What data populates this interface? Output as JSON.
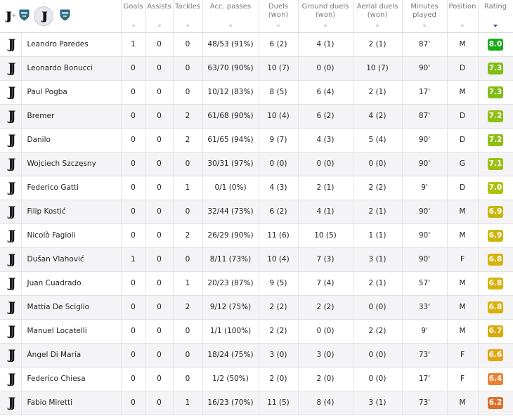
{
  "header": {
    "goals": "Goals",
    "assists": "Assists",
    "tackles": "Tackles",
    "acc_passes": "Acc. passes",
    "duels": [
      "Duels",
      "(won)"
    ],
    "ground_duels": [
      "Ground duels",
      "(won)"
    ],
    "aerial_duels": [
      "Aerial duels",
      "(won)"
    ],
    "minutes": [
      "Minutes",
      "played"
    ],
    "position": "Position",
    "rating": "Rating",
    "filters": {
      "plus": "+"
    },
    "sort_active": "rating"
  },
  "colors": {
    "rating_green_dark": "#1bab1b",
    "rating_green": "#7fbd16",
    "rating_yellow_green": "#acc112",
    "rating_yellow": "#d8b10b",
    "rating_orange": "#ea8231",
    "rating_deep_orange": "#e06c28",
    "sort_active": "#3553b5"
  },
  "icons": {
    "team_crest": "juventus-crest-icon",
    "opponent_crest": "lecce-crest-icon"
  },
  "players": [
    {
      "name": "Leandro Paredes",
      "goals": "1",
      "assists": "0",
      "tackles": "0",
      "passes": "48/53 (91%)",
      "duels": "6 (2)",
      "ground": "4 (1)",
      "aerial": "2 (1)",
      "minutes": "87'",
      "pos": "M",
      "rating": "8.0",
      "color": "#1bab1b"
    },
    {
      "name": "Leonardo Bonucci",
      "goals": "0",
      "assists": "0",
      "tackles": "0",
      "passes": "63/70 (90%)",
      "duels": "10 (7)",
      "ground": "0 (0)",
      "aerial": "10 (7)",
      "minutes": "90'",
      "pos": "D",
      "rating": "7.3",
      "color": "#7fbd16"
    },
    {
      "name": "Paul Pogba",
      "goals": "0",
      "assists": "0",
      "tackles": "0",
      "passes": "10/12 (83%)",
      "duels": "8 (5)",
      "ground": "6 (4)",
      "aerial": "2 (1)",
      "minutes": "17'",
      "pos": "M",
      "rating": "7.3",
      "color": "#7fbd16"
    },
    {
      "name": "Bremer",
      "goals": "0",
      "assists": "0",
      "tackles": "2",
      "passes": "61/68 (90%)",
      "duels": "10 (4)",
      "ground": "6 (2)",
      "aerial": "4 (2)",
      "minutes": "87'",
      "pos": "D",
      "rating": "7.2",
      "color": "#8fbe14"
    },
    {
      "name": "Danilo",
      "goals": "0",
      "assists": "0",
      "tackles": "2",
      "passes": "61/65 (94%)",
      "duels": "9 (7)",
      "ground": "4 (3)",
      "aerial": "5 (4)",
      "minutes": "90'",
      "pos": "D",
      "rating": "7.2",
      "color": "#8fbe14"
    },
    {
      "name": "Wojciech Szczęsny",
      "goals": "0",
      "assists": "0",
      "tackles": "0",
      "passes": "30/31 (97%)",
      "duels": "0 (0)",
      "ground": "0 (0)",
      "aerial": "0 (0)",
      "minutes": "90'",
      "pos": "G",
      "rating": "7.1",
      "color": "#9cc013"
    },
    {
      "name": "Federico Gatti",
      "goals": "0",
      "assists": "0",
      "tackles": "1",
      "passes": "0/1 (0%)",
      "duels": "4 (3)",
      "ground": "2 (1)",
      "aerial": "2 (2)",
      "minutes": "9'",
      "pos": "D",
      "rating": "7.0",
      "color": "#acc112"
    },
    {
      "name": "Filip Kostić",
      "goals": "0",
      "assists": "0",
      "tackles": "0",
      "passes": "32/44 (73%)",
      "duels": "6 (2)",
      "ground": "4 (1)",
      "aerial": "2 (1)",
      "minutes": "90'",
      "pos": "M",
      "rating": "6.9",
      "color": "#c9b70d"
    },
    {
      "name": "Nicolò Fagioli",
      "goals": "0",
      "assists": "0",
      "tackles": "2",
      "passes": "26/29 (90%)",
      "duels": "11 (6)",
      "ground": "10 (5)",
      "aerial": "1 (1)",
      "minutes": "90'",
      "pos": "M",
      "rating": "6.9",
      "color": "#c9b70d"
    },
    {
      "name": "Dušan Vlahović",
      "goals": "1",
      "assists": "0",
      "tackles": "0",
      "passes": "8/11 (73%)",
      "duels": "10 (4)",
      "ground": "7 (3)",
      "aerial": "3 (1)",
      "minutes": "90'",
      "pos": "F",
      "rating": "6.8",
      "color": "#d8b10b"
    },
    {
      "name": "Juan Cuadrado",
      "goals": "0",
      "assists": "0",
      "tackles": "1",
      "passes": "20/23 (87%)",
      "duels": "9 (5)",
      "ground": "7 (4)",
      "aerial": "2 (1)",
      "minutes": "57'",
      "pos": "M",
      "rating": "6.8",
      "color": "#d8b10b"
    },
    {
      "name": "Mattia De Sciglio",
      "goals": "0",
      "assists": "0",
      "tackles": "2",
      "passes": "9/12 (75%)",
      "duels": "2 (2)",
      "ground": "2 (2)",
      "aerial": "0 (0)",
      "minutes": "33'",
      "pos": "M",
      "rating": "6.8",
      "color": "#d8b10b"
    },
    {
      "name": "Manuel Locatelli",
      "goals": "0",
      "assists": "0",
      "tackles": "0",
      "passes": "1/1 (100%)",
      "duels": "2 (2)",
      "ground": "0 (0)",
      "aerial": "2 (2)",
      "minutes": "9'",
      "pos": "M",
      "rating": "6.7",
      "color": "#d9ab0d"
    },
    {
      "name": "Ángel Di María",
      "goals": "0",
      "assists": "0",
      "tackles": "0",
      "passes": "18/24 (75%)",
      "duels": "3 (0)",
      "ground": "3 (0)",
      "aerial": "0 (0)",
      "minutes": "73'",
      "pos": "F",
      "rating": "6.6",
      "color": "#dfa514"
    },
    {
      "name": "Federico Chiesa",
      "goals": "0",
      "assists": "0",
      "tackles": "0",
      "passes": "1/2 (50%)",
      "duels": "2 (0)",
      "ground": "2 (0)",
      "aerial": "0 (0)",
      "minutes": "17'",
      "pos": "F",
      "rating": "6.4",
      "color": "#ea8231"
    },
    {
      "name": "Fabio Miretti",
      "goals": "0",
      "assists": "0",
      "tackles": "1",
      "passes": "16/23 (70%)",
      "duels": "11 (5)",
      "ground": "8 (4)",
      "aerial": "3 (1)",
      "minutes": "73'",
      "pos": "M",
      "rating": "6.2",
      "color": "#e06c28"
    }
  ]
}
